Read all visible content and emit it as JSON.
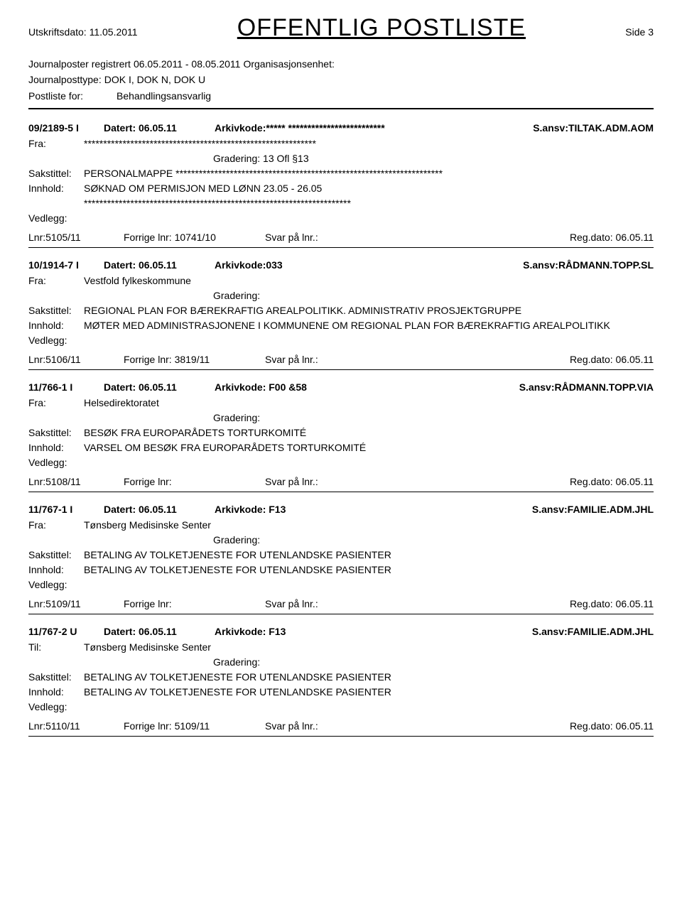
{
  "header": {
    "print_date_label": "Utskriftsdato:",
    "print_date": "11.05.2011",
    "title": "OFFENTLIG POSTLISTE",
    "side_label": "Side 3"
  },
  "subheader": {
    "line1_a": "Journalposter registrert",
    "line1_b": "06.05.2011 - 08.05.2011",
    "line1_c": "Organisasjonsenhet:",
    "line2_a": "Journalposttype:",
    "line2_b": "DOK I, DOK N, DOK U",
    "line3_a": "Postliste for:",
    "line3_b": "Behandlingsansvarlig"
  },
  "entries": [
    {
      "case_id": "09/2189-5",
      "doc_type": "I",
      "datert_label": "Datert:",
      "datert": "06.05.11",
      "arkiv_label": "Arkivkode:",
      "arkiv": "***** *************************",
      "ansv_label": "S.ansv:",
      "ansv": "TILTAK.ADM.AOM",
      "fra_label": "Fra:",
      "fra": "************************************************************",
      "gradering_label": "Gradering:",
      "gradering": "13 Ofl §13",
      "sakstittel_label": "Sakstittel:",
      "sakstittel": "PERSONALMAPPE  *********************************************************************",
      "innhold_label": "Innhold:",
      "innhold": "SØKNAD OM PERMISJON MED LØNN 23.05 - 26.05",
      "extra": "*********************************************************************",
      "vedlegg_label": "Vedlegg:",
      "vedlegg": "",
      "lnr_label": "Lnr:",
      "lnr": "5105/11",
      "forrige_label": "Forrige lnr:",
      "forrige": "10741/10",
      "svar_label": "Svar på lnr.:",
      "svar": "",
      "regdato_label": "Reg.dato:",
      "regdato": "06.05.11"
    },
    {
      "case_id": "10/1914-7",
      "doc_type": "I",
      "datert_label": "Datert:",
      "datert": "06.05.11",
      "arkiv_label": "Arkivkode:",
      "arkiv": "033",
      "ansv_label": "S.ansv:",
      "ansv": "RÅDMANN.TOPP.SL",
      "fra_label": "Fra:",
      "fra": "Vestfold fylkeskommune",
      "gradering_label": "Gradering:",
      "gradering": "",
      "sakstittel_label": "Sakstittel:",
      "sakstittel": "REGIONAL PLAN FOR BÆREKRAFTIG AREALPOLITIKK. ADMINISTRATIV PROSJEKTGRUPPE",
      "innhold_label": "Innhold:",
      "innhold": "MØTER MED ADMINISTRASJONENE I KOMMUNENE OM REGIONAL PLAN FOR  BÆREKRAFTIG AREALPOLITIKK",
      "extra": "",
      "vedlegg_label": "Vedlegg:",
      "vedlegg": "",
      "lnr_label": "Lnr:",
      "lnr": "5106/11",
      "forrige_label": "Forrige lnr:",
      "forrige": "3819/11",
      "svar_label": "Svar på lnr.:",
      "svar": "",
      "regdato_label": "Reg.dato:",
      "regdato": "06.05.11"
    },
    {
      "case_id": "11/766-1",
      "doc_type": "I",
      "datert_label": "Datert:",
      "datert": "06.05.11",
      "arkiv_label": "Arkivkode:",
      "arkiv": " F00 &58",
      "ansv_label": "S.ansv:",
      "ansv": "RÅDMANN.TOPP.VIA",
      "fra_label": "Fra:",
      "fra": "Helsedirektoratet",
      "gradering_label": "Gradering:",
      "gradering": "",
      "sakstittel_label": "Sakstittel:",
      "sakstittel": "BESØK FRA EUROPARÅDETS TORTURKOMITÉ",
      "innhold_label": "Innhold:",
      "innhold": "VARSEL OM BESØK FRA EUROPARÅDETS TORTURKOMITÉ",
      "extra": "",
      "vedlegg_label": "Vedlegg:",
      "vedlegg": "",
      "lnr_label": "Lnr:",
      "lnr": "5108/11",
      "forrige_label": "Forrige lnr:",
      "forrige": "",
      "svar_label": "Svar på lnr.:",
      "svar": "",
      "regdato_label": "Reg.dato:",
      "regdato": "06.05.11"
    },
    {
      "case_id": "11/767-1",
      "doc_type": "I",
      "datert_label": "Datert:",
      "datert": "06.05.11",
      "arkiv_label": "Arkivkode:",
      "arkiv": " F13",
      "ansv_label": "S.ansv:",
      "ansv": "FAMILIE.ADM.JHL",
      "fra_label": "Fra:",
      "fra": "Tønsberg Medisinske Senter",
      "gradering_label": "Gradering:",
      "gradering": "",
      "sakstittel_label": "Sakstittel:",
      "sakstittel": "BETALING AV TOLKETJENESTE FOR UTENLANDSKE PASIENTER",
      "innhold_label": "Innhold:",
      "innhold": "BETALING AV TOLKETJENESTE FOR UTENLANDSKE PASIENTER",
      "extra": "",
      "vedlegg_label": "Vedlegg:",
      "vedlegg": "",
      "lnr_label": "Lnr:",
      "lnr": "5109/11",
      "forrige_label": "Forrige lnr:",
      "forrige": "",
      "svar_label": "Svar på lnr.:",
      "svar": "",
      "regdato_label": "Reg.dato:",
      "regdato": "06.05.11"
    },
    {
      "case_id": "11/767-2",
      "doc_type": "U",
      "datert_label": "Datert:",
      "datert": "06.05.11",
      "arkiv_label": "Arkivkode:",
      "arkiv": " F13",
      "ansv_label": "S.ansv:",
      "ansv": "FAMILIE.ADM.JHL",
      "fra_label": "Til:",
      "fra": "Tønsberg Medisinske Senter",
      "gradering_label": "Gradering:",
      "gradering": "",
      "sakstittel_label": "Sakstittel:",
      "sakstittel": "BETALING AV TOLKETJENESTE FOR UTENLANDSKE PASIENTER",
      "innhold_label": "Innhold:",
      "innhold": "BETALING AV TOLKETJENESTE FOR UTENLANDSKE PASIENTER",
      "extra": "",
      "vedlegg_label": "Vedlegg:",
      "vedlegg": "",
      "lnr_label": "Lnr:",
      "lnr": "5110/11",
      "forrige_label": "Forrige lnr:",
      "forrige": "5109/11",
      "svar_label": "Svar på lnr.:",
      "svar": "",
      "regdato_label": "Reg.dato:",
      "regdato": "06.05.11"
    }
  ]
}
